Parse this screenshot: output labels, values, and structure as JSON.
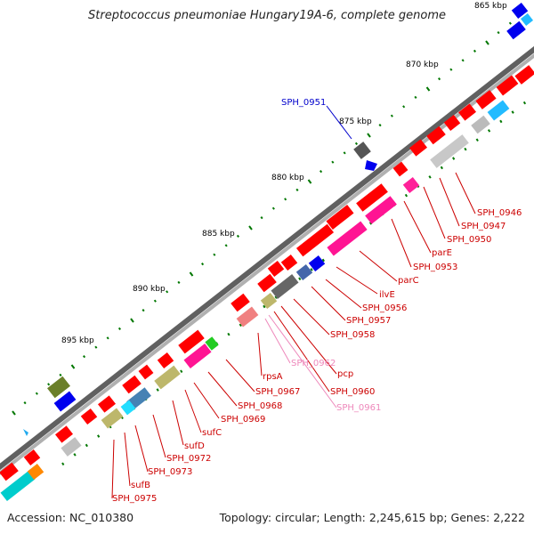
{
  "title": "Streptococcus pneumoniae Hungary19A-6, complete genome",
  "footer": {
    "accession": "Accession: NC_010380",
    "stats": "Topology: circular; Length: 2,245,615 bp; Genes: 2,222"
  },
  "colors": {
    "backbone": "#808080",
    "cds": "#ff0000",
    "label": "#cc0000",
    "label_pink": "#ee88bb",
    "label_blue": "#0000cc",
    "tick": "#007700"
  },
  "ruler_labels": [
    "865 kbp",
    "870 kbp",
    "875 kbp",
    "880 kbp",
    "885 kbp",
    "890 kbp",
    "895 kbp"
  ],
  "gene_labels": [
    "SPH_0946",
    "SPH_0947",
    "SPH_0950",
    "parE",
    "SPH_0953",
    "parC",
    "ilvE",
    "SPH_0956",
    "SPH_0957",
    "SPH_0958",
    "pcp",
    "SPH_0960",
    "SPH_0961",
    "SPH_0962",
    "rpsA",
    "SPH_0967",
    "SPH_0968",
    "SPH_0969",
    "sufC",
    "sufD",
    "SPH_0972",
    "SPH_0973",
    "sufB",
    "SPH_0975",
    "SPH_0951"
  ]
}
